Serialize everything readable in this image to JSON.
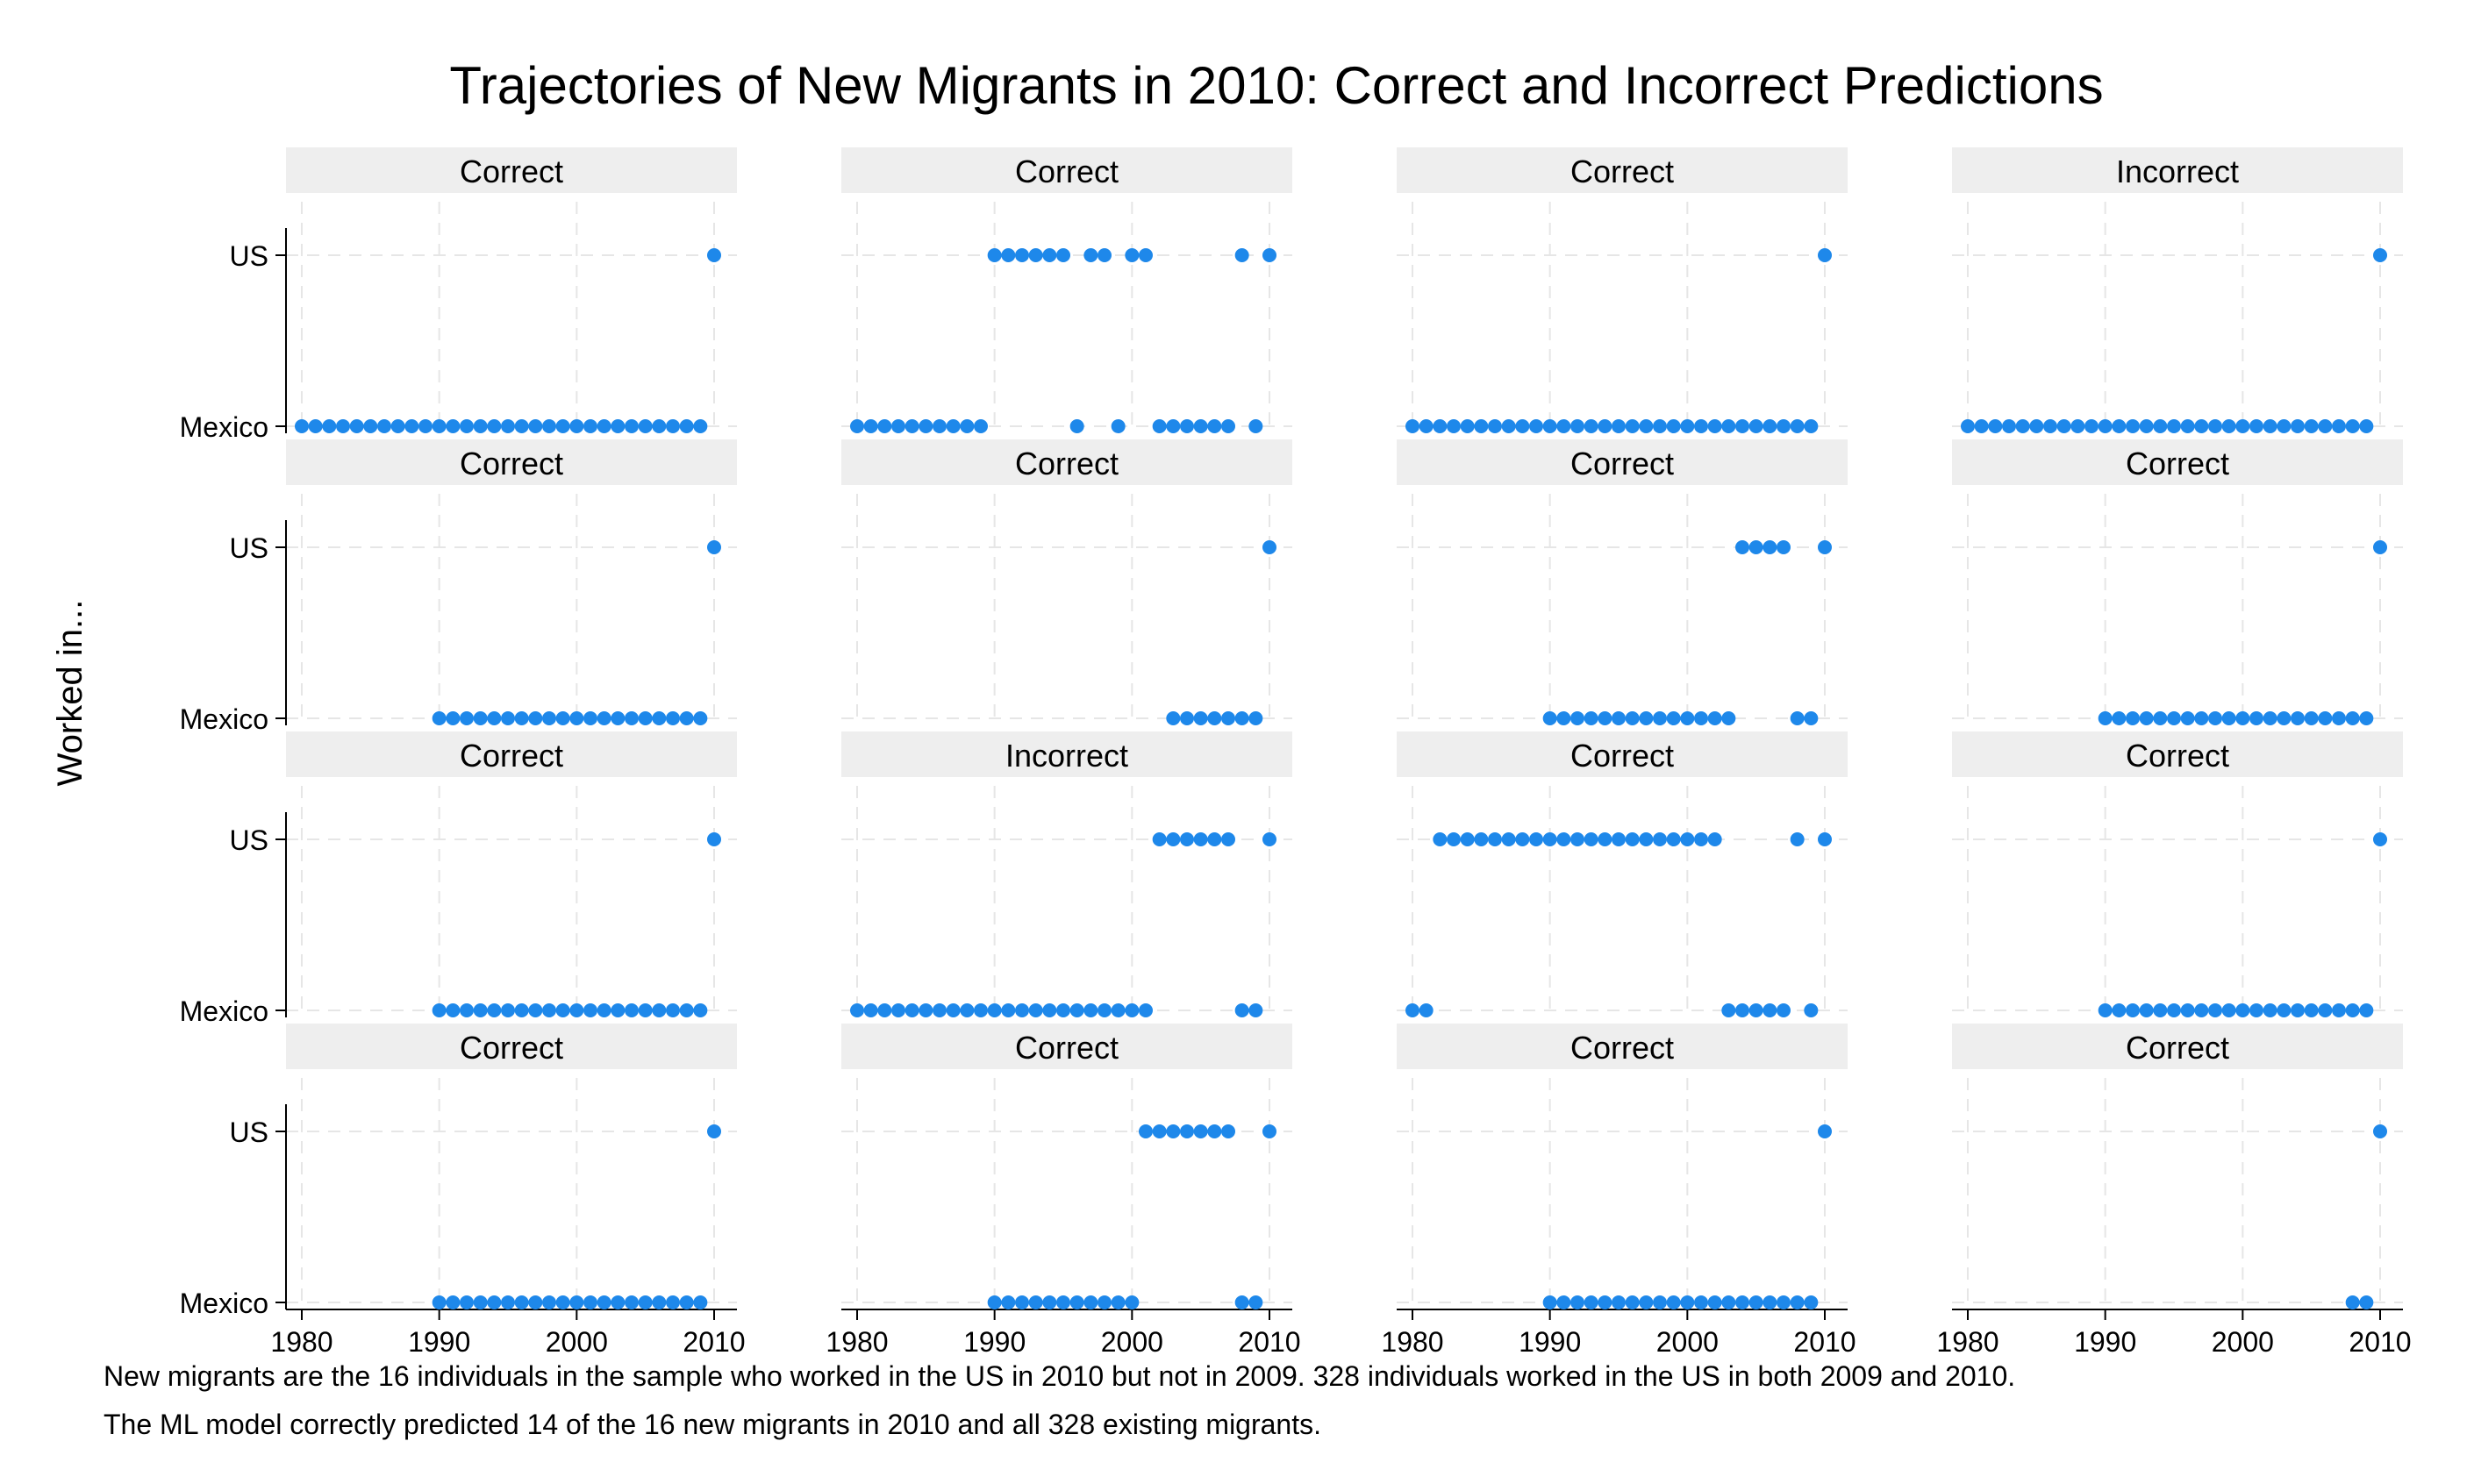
{
  "chart_data": {
    "type": "scatter",
    "title": "Trajectories of New Migrants in 2010: Correct and Incorrect Predictions",
    "ylabel": "Worked in...",
    "xlabel": "",
    "xlim": [
      1979,
      2011
    ],
    "xticks": [
      1980,
      1990,
      2000,
      2010
    ],
    "yticks": [
      "US",
      "Mexico"
    ],
    "grid": true,
    "marker_color": "#1e88ea",
    "panel_header_color": "#eeeeee",
    "gridline_color": "#e6e6e6",
    "panels": [
      {
        "label": "Correct",
        "us": [
          2010
        ],
        "mexico": [
          1980,
          1981,
          1982,
          1983,
          1984,
          1985,
          1986,
          1987,
          1988,
          1989,
          1990,
          1991,
          1992,
          1993,
          1994,
          1995,
          1996,
          1997,
          1998,
          1999,
          2000,
          2001,
          2002,
          2003,
          2004,
          2005,
          2006,
          2007,
          2008,
          2009
        ]
      },
      {
        "label": "Correct",
        "us": [
          1990,
          1991,
          1992,
          1993,
          1994,
          1995,
          1997,
          1998,
          2000,
          2001,
          2008,
          2010
        ],
        "mexico": [
          1980,
          1981,
          1982,
          1983,
          1984,
          1985,
          1986,
          1987,
          1988,
          1989,
          1996,
          1999,
          2002,
          2003,
          2004,
          2005,
          2006,
          2007,
          2009
        ]
      },
      {
        "label": "Correct",
        "us": [
          2010
        ],
        "mexico": [
          1980,
          1981,
          1982,
          1983,
          1984,
          1985,
          1986,
          1987,
          1988,
          1989,
          1990,
          1991,
          1992,
          1993,
          1994,
          1995,
          1996,
          1997,
          1998,
          1999,
          2000,
          2001,
          2002,
          2003,
          2004,
          2005,
          2006,
          2007,
          2008,
          2009
        ]
      },
      {
        "label": "Incorrect",
        "us": [
          2010
        ],
        "mexico": [
          1980,
          1981,
          1982,
          1983,
          1984,
          1985,
          1986,
          1987,
          1988,
          1989,
          1990,
          1991,
          1992,
          1993,
          1994,
          1995,
          1996,
          1997,
          1998,
          1999,
          2000,
          2001,
          2002,
          2003,
          2004,
          2005,
          2006,
          2007,
          2008,
          2009
        ]
      },
      {
        "label": "Correct",
        "us": [
          2010
        ],
        "mexico": [
          1990,
          1991,
          1992,
          1993,
          1994,
          1995,
          1996,
          1997,
          1998,
          1999,
          2000,
          2001,
          2002,
          2003,
          2004,
          2005,
          2006,
          2007,
          2008,
          2009
        ]
      },
      {
        "label": "Correct",
        "us": [
          2010
        ],
        "mexico": [
          2003,
          2004,
          2005,
          2006,
          2007,
          2008,
          2009
        ]
      },
      {
        "label": "Correct",
        "us": [
          2004,
          2005,
          2006,
          2007,
          2010
        ],
        "mexico": [
          1990,
          1991,
          1992,
          1993,
          1994,
          1995,
          1996,
          1997,
          1998,
          1999,
          2000,
          2001,
          2002,
          2003,
          2008,
          2009
        ]
      },
      {
        "label": "Correct",
        "us": [
          2010
        ],
        "mexico": [
          1990,
          1991,
          1992,
          1993,
          1994,
          1995,
          1996,
          1997,
          1998,
          1999,
          2000,
          2001,
          2002,
          2003,
          2004,
          2005,
          2006,
          2007,
          2008,
          2009
        ]
      },
      {
        "label": "Correct",
        "us": [
          2010
        ],
        "mexico": [
          1990,
          1991,
          1992,
          1993,
          1994,
          1995,
          1996,
          1997,
          1998,
          1999,
          2000,
          2001,
          2002,
          2003,
          2004,
          2005,
          2006,
          2007,
          2008,
          2009
        ]
      },
      {
        "label": "Incorrect",
        "us": [
          2002,
          2003,
          2004,
          2005,
          2006,
          2007,
          2010
        ],
        "mexico": [
          1980,
          1981,
          1982,
          1983,
          1984,
          1985,
          1986,
          1987,
          1988,
          1989,
          1990,
          1991,
          1992,
          1993,
          1994,
          1995,
          1996,
          1997,
          1998,
          1999,
          2000,
          2001,
          2008,
          2009
        ]
      },
      {
        "label": "Correct",
        "us": [
          1982,
          1983,
          1984,
          1985,
          1986,
          1987,
          1988,
          1989,
          1990,
          1991,
          1992,
          1993,
          1994,
          1995,
          1996,
          1997,
          1998,
          1999,
          2000,
          2001,
          2002,
          2008,
          2010
        ],
        "mexico": [
          1980,
          1981,
          2003,
          2004,
          2005,
          2006,
          2007,
          2009
        ]
      },
      {
        "label": "Correct",
        "us": [
          2010
        ],
        "mexico": [
          1990,
          1991,
          1992,
          1993,
          1994,
          1995,
          1996,
          1997,
          1998,
          1999,
          2000,
          2001,
          2002,
          2003,
          2004,
          2005,
          2006,
          2007,
          2008,
          2009
        ]
      },
      {
        "label": "Correct",
        "us": [
          2010
        ],
        "mexico": [
          1990,
          1991,
          1992,
          1993,
          1994,
          1995,
          1996,
          1997,
          1998,
          1999,
          2000,
          2001,
          2002,
          2003,
          2004,
          2005,
          2006,
          2007,
          2008,
          2009
        ]
      },
      {
        "label": "Correct",
        "us": [
          2001,
          2002,
          2003,
          2004,
          2005,
          2006,
          2007,
          2010
        ],
        "mexico": [
          1990,
          1991,
          1992,
          1993,
          1994,
          1995,
          1996,
          1997,
          1998,
          1999,
          2000,
          2008,
          2009
        ]
      },
      {
        "label": "Correct",
        "us": [
          2010
        ],
        "mexico": [
          1990,
          1991,
          1992,
          1993,
          1994,
          1995,
          1996,
          1997,
          1998,
          1999,
          2000,
          2001,
          2002,
          2003,
          2004,
          2005,
          2006,
          2007,
          2008,
          2009
        ]
      },
      {
        "label": "Correct",
        "us": [
          2010
        ],
        "mexico": [
          2008,
          2009
        ]
      }
    ]
  },
  "notes": {
    "line1": "New migrants are the 16 individuals in the sample who worked in the US in 2010 but not in 2009. 328 individuals worked in the US in both 2009 and 2010.",
    "line2": "The ML model correctly predicted 14 of the 16 new migrants in 2010 and all 328 existing migrants."
  }
}
